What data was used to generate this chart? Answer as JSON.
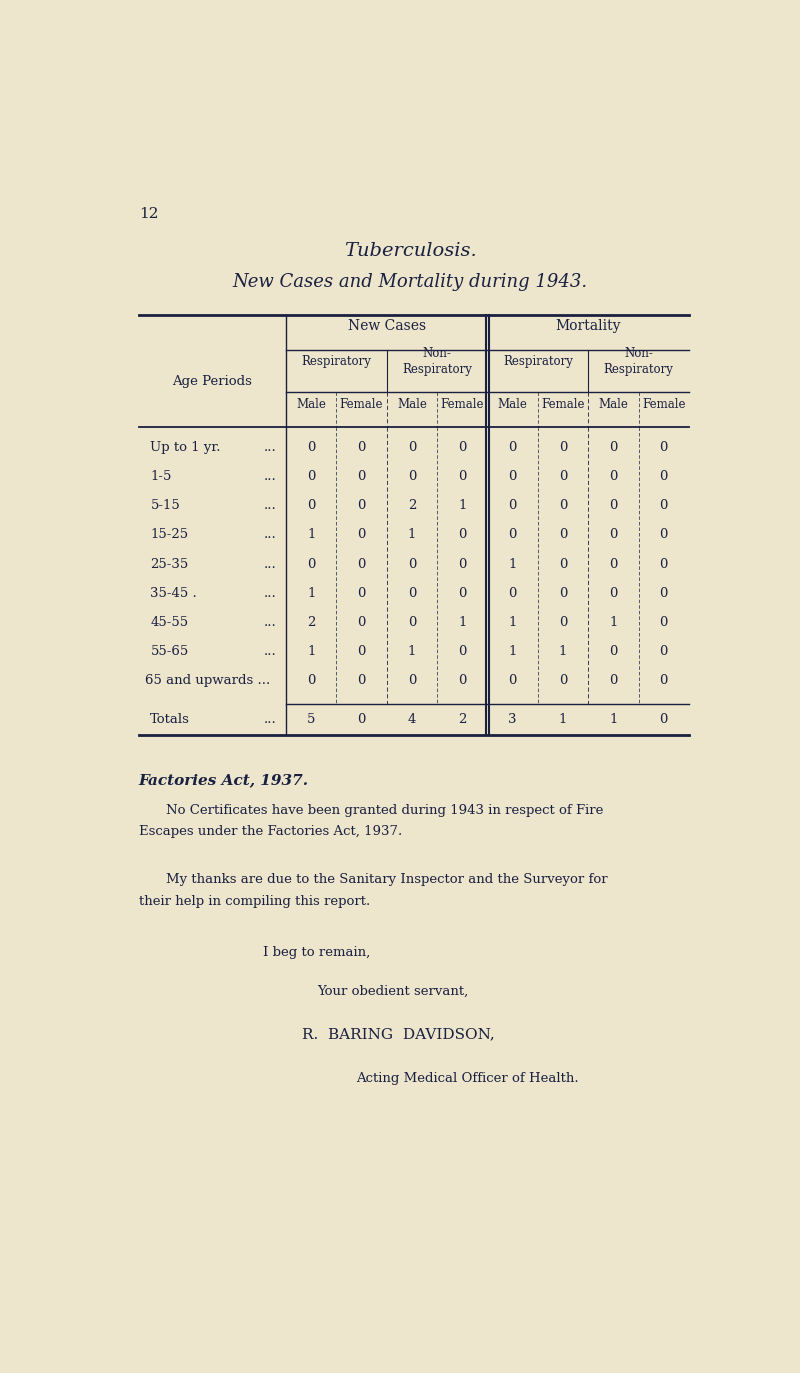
{
  "page_number": "12",
  "title": "Tuberculosis.",
  "subtitle": "New Cases and Mortality during 1943.",
  "bg_color": "#ede5cc",
  "text_color": "#1a2040",
  "age_periods": [
    "Up to 1 yr.",
    "1-5",
    "5-15",
    "15-25",
    "25-35",
    "35-45 .",
    "45-55",
    "55-65",
    "65 and upwards ..."
  ],
  "data": [
    [
      0,
      0,
      0,
      0,
      0,
      0,
      0,
      0
    ],
    [
      0,
      0,
      0,
      0,
      0,
      0,
      0,
      0
    ],
    [
      0,
      0,
      2,
      1,
      0,
      0,
      0,
      0
    ],
    [
      1,
      0,
      1,
      0,
      0,
      0,
      0,
      0
    ],
    [
      0,
      0,
      0,
      0,
      1,
      0,
      0,
      0
    ],
    [
      1,
      0,
      0,
      0,
      0,
      0,
      0,
      0
    ],
    [
      2,
      0,
      0,
      1,
      1,
      0,
      1,
      0
    ],
    [
      1,
      0,
      1,
      0,
      1,
      1,
      0,
      0
    ],
    [
      0,
      0,
      0,
      0,
      0,
      0,
      0,
      0
    ]
  ],
  "totals": [
    5,
    0,
    4,
    2,
    3,
    1,
    1,
    0
  ],
  "factories_heading": "Factories Act, 1937.",
  "factories_line1": "No Certificates have been granted during 1943 in respect of Fire",
  "factories_line2": "Escapes under the Factories Act, 1937.",
  "thanks_line1": "My thanks are due to the Sanitary Inspector and the Surveyor for",
  "thanks_line2": "their help in compiling this report.",
  "closing1": "I beg to remain,",
  "closing2": "Your obedient servant,",
  "closing3": "R.  BARING  DAVIDSON,",
  "closing4": "Acting Medical Officer of Health."
}
